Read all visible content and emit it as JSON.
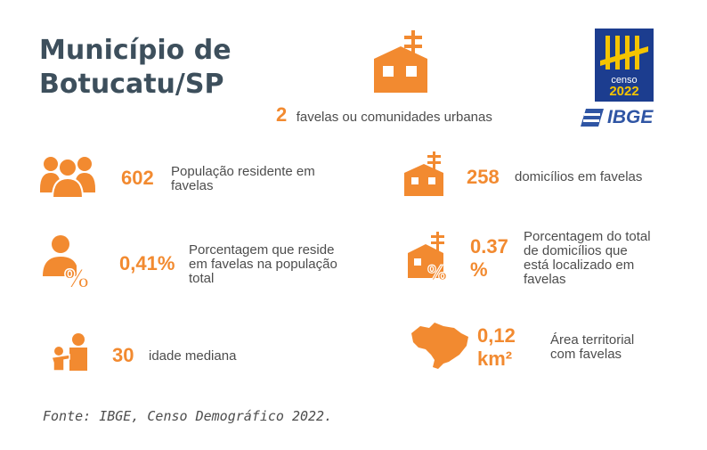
{
  "title": {
    "line1": "Município de",
    "line2": "Botucatu/SP"
  },
  "logo": {
    "censo_word": "censo",
    "censo_year": "2022",
    "ibge": "IBGE"
  },
  "favelas": {
    "value": "2",
    "label": "favelas ou comunidades urbanas"
  },
  "populacao": {
    "value": "602",
    "label_line1": "População residente em",
    "label_line2": "favelas"
  },
  "domicilios": {
    "value": "258",
    "label": "domicílios em favelas"
  },
  "porcentagem_pop": {
    "value": "0,41%",
    "label_line1": "Porcentagem que reside",
    "label_line2": "em favelas na população",
    "label_line3": "total"
  },
  "porcentagem_dom": {
    "value_line1": "0.37",
    "value_line2": "%",
    "label_line1": "Porcentagem do total",
    "label_line2": "de domicílios que",
    "label_line3": "está localizado em",
    "label_line4": "favelas"
  },
  "idade": {
    "value": "30",
    "label": "idade mediana"
  },
  "area": {
    "value_line1": "0,12",
    "value_line2": "km²",
    "label_line1": "Área territorial",
    "label_line2": "com favelas"
  },
  "source": "Fonte: IBGE, Censo Demográfico 2022.",
  "colors": {
    "accent": "#f28a30",
    "title": "#3d4f5c",
    "logo_bg": "#1c3d8f",
    "logo_yellow": "#f5c400"
  }
}
